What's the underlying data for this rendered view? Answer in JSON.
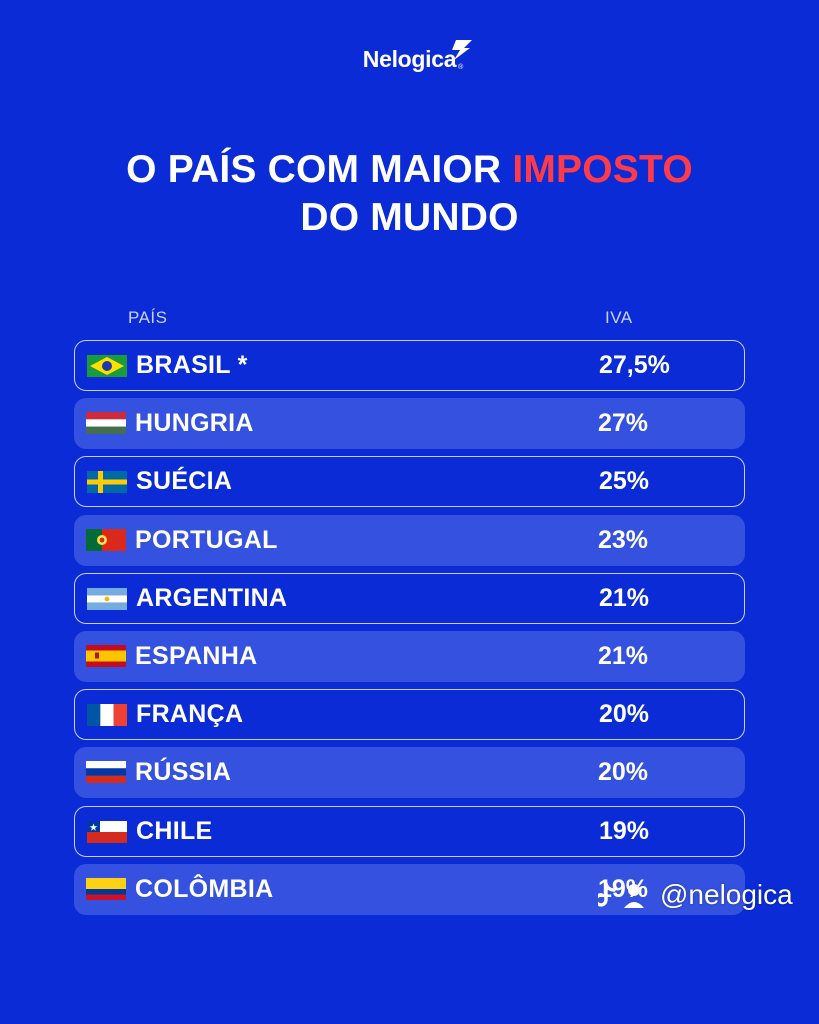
{
  "brand": {
    "name": "Nelogica",
    "reg": "®"
  },
  "title": {
    "line1_pre": "O PAÍS COM MAIOR ",
    "line1_highlight": "IMPOSTO",
    "line2": "DO MUNDO"
  },
  "columns": {
    "country": "PAÍS",
    "vat": "IVA"
  },
  "rows": [
    {
      "country": "BRASIL *",
      "vat": "27,5%",
      "flag": "brazil-flag"
    },
    {
      "country": "HUNGRIA",
      "vat": "27%",
      "flag": "hungary-flag"
    },
    {
      "country": "SUÉCIA",
      "vat": "25%",
      "flag": "sweden-flag"
    },
    {
      "country": "PORTUGAL",
      "vat": "23%",
      "flag": "portugal-flag"
    },
    {
      "country": "ARGENTINA",
      "vat": "21%",
      "flag": "argentina-flag"
    },
    {
      "country": "ESPANHA",
      "vat": "21%",
      "flag": "spain-flag"
    },
    {
      "country": "FRANÇA",
      "vat": "20%",
      "flag": "france-flag"
    },
    {
      "country": "RÚSSIA",
      "vat": "20%",
      "flag": "russia-flag"
    },
    {
      "country": "CHILE",
      "vat": "19%",
      "flag": "chile-flag"
    },
    {
      "country": "COLÔMBIA",
      "vat": "19%",
      "flag": "colombia-flag"
    }
  ],
  "watermark": {
    "handle": "@nelogica",
    "icon": "tiktok-icon"
  },
  "colors": {
    "background": "#0a2bd6",
    "highlight": "#ff3b4a",
    "row_fill": "#3451df",
    "row_border": "#c8d0ff"
  }
}
